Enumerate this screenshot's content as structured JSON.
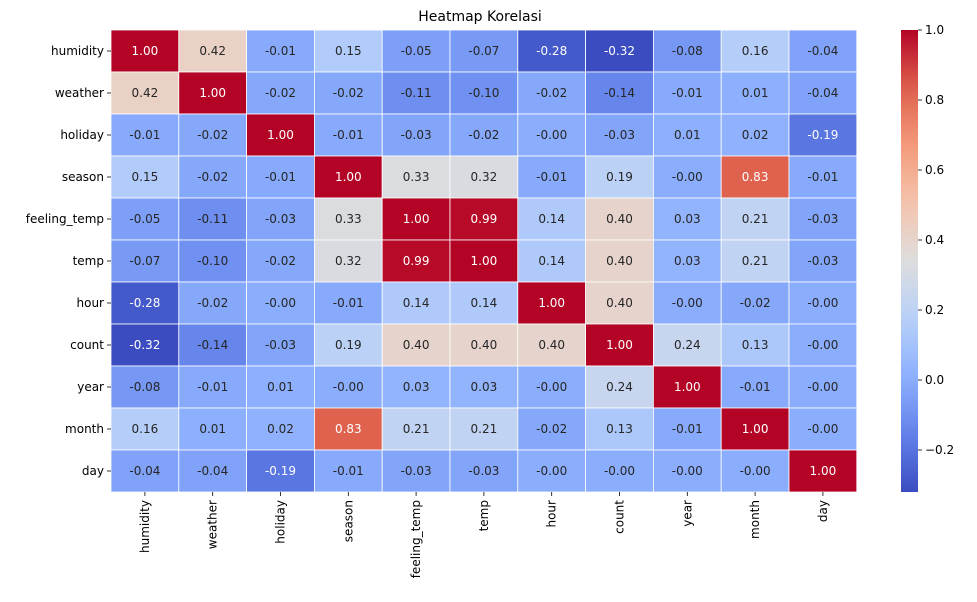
{
  "chart_data": {
    "type": "heatmap",
    "title": "Heatmap Korelasi",
    "xlabels": [
      "humidity",
      "weather",
      "holiday",
      "season",
      "feeling_temp",
      "temp",
      "hour",
      "count",
      "year",
      "month",
      "day"
    ],
    "ylabels": [
      "humidity",
      "weather",
      "holiday",
      "season",
      "feeling_temp",
      "temp",
      "hour",
      "count",
      "year",
      "month",
      "day"
    ],
    "values": [
      [
        1.0,
        0.42,
        -0.01,
        0.15,
        -0.05,
        -0.07,
        -0.28,
        -0.32,
        -0.08,
        0.16,
        -0.04
      ],
      [
        0.42,
        1.0,
        -0.02,
        -0.02,
        -0.11,
        -0.1,
        -0.02,
        -0.14,
        -0.01,
        0.01,
        -0.04
      ],
      [
        -0.01,
        -0.02,
        1.0,
        -0.01,
        -0.03,
        -0.02,
        -0.0,
        -0.03,
        0.01,
        0.02,
        -0.19
      ],
      [
        0.15,
        -0.02,
        -0.01,
        1.0,
        0.33,
        0.32,
        -0.01,
        0.19,
        -0.0,
        0.83,
        -0.01
      ],
      [
        -0.05,
        -0.11,
        -0.03,
        0.33,
        1.0,
        0.99,
        0.14,
        0.4,
        0.03,
        0.21,
        -0.03
      ],
      [
        -0.07,
        -0.1,
        -0.02,
        0.32,
        0.99,
        1.0,
        0.14,
        0.4,
        0.03,
        0.21,
        -0.03
      ],
      [
        -0.28,
        -0.02,
        -0.0,
        -0.01,
        0.14,
        0.14,
        1.0,
        0.4,
        -0.0,
        -0.02,
        -0.0
      ],
      [
        -0.32,
        -0.14,
        -0.03,
        0.19,
        0.4,
        0.4,
        0.4,
        1.0,
        0.24,
        0.13,
        -0.0
      ],
      [
        -0.08,
        -0.01,
        0.01,
        -0.0,
        0.03,
        0.03,
        -0.0,
        0.24,
        1.0,
        -0.01,
        -0.0
      ],
      [
        0.16,
        0.01,
        0.02,
        0.83,
        0.21,
        0.21,
        -0.02,
        0.13,
        -0.01,
        1.0,
        -0.0
      ],
      [
        -0.04,
        -0.04,
        -0.19,
        -0.01,
        -0.03,
        -0.03,
        -0.0,
        -0.0,
        -0.0,
        -0.0,
        1.0
      ]
    ],
    "value_labels": [
      [
        "1.00",
        "0.42",
        "-0.01",
        "0.15",
        "-0.05",
        "-0.07",
        "-0.28",
        "-0.32",
        "-0.08",
        "0.16",
        "-0.04"
      ],
      [
        "0.42",
        "1.00",
        "-0.02",
        "-0.02",
        "-0.11",
        "-0.10",
        "-0.02",
        "-0.14",
        "-0.01",
        "0.01",
        "-0.04"
      ],
      [
        "-0.01",
        "-0.02",
        "1.00",
        "-0.01",
        "-0.03",
        "-0.02",
        "-0.00",
        "-0.03",
        "0.01",
        "0.02",
        "-0.19"
      ],
      [
        "0.15",
        "-0.02",
        "-0.01",
        "1.00",
        "0.33",
        "0.32",
        "-0.01",
        "0.19",
        "-0.00",
        "0.83",
        "-0.01"
      ],
      [
        "-0.05",
        "-0.11",
        "-0.03",
        "0.33",
        "1.00",
        "0.99",
        "0.14",
        "0.40",
        "0.03",
        "0.21",
        "-0.03"
      ],
      [
        "-0.07",
        "-0.10",
        "-0.02",
        "0.32",
        "0.99",
        "1.00",
        "0.14",
        "0.40",
        "0.03",
        "0.21",
        "-0.03"
      ],
      [
        "-0.28",
        "-0.02",
        "-0.00",
        "-0.01",
        "0.14",
        "0.14",
        "1.00",
        "0.40",
        "-0.00",
        "-0.02",
        "-0.00"
      ],
      [
        "-0.32",
        "-0.14",
        "-0.03",
        "0.19",
        "0.40",
        "0.40",
        "0.40",
        "1.00",
        "0.24",
        "0.13",
        "-0.00"
      ],
      [
        "-0.08",
        "-0.01",
        "0.01",
        "-0.00",
        "0.03",
        "0.03",
        "-0.00",
        "0.24",
        "1.00",
        "-0.01",
        "-0.00"
      ],
      [
        "0.16",
        "0.01",
        "0.02",
        "0.83",
        "0.21",
        "0.21",
        "-0.02",
        "0.13",
        "-0.01",
        "1.00",
        "-0.00"
      ],
      [
        "-0.04",
        "-0.04",
        "-0.19",
        "-0.01",
        "-0.03",
        "-0.03",
        "-0.00",
        "-0.00",
        "-0.00",
        "-0.00",
        "1.00"
      ]
    ],
    "colormap": "coolwarm",
    "vmin": -0.32,
    "vmax": 1.0,
    "colorbar": {
      "ticks": [
        -0.2,
        0.0,
        0.2,
        0.4,
        0.6,
        0.8,
        1.0
      ],
      "tick_labels": [
        "−0.2",
        "0.0",
        "0.2",
        "0.4",
        "0.6",
        "0.8",
        "1.0"
      ]
    },
    "grid_lines_color": "#ffffff"
  }
}
